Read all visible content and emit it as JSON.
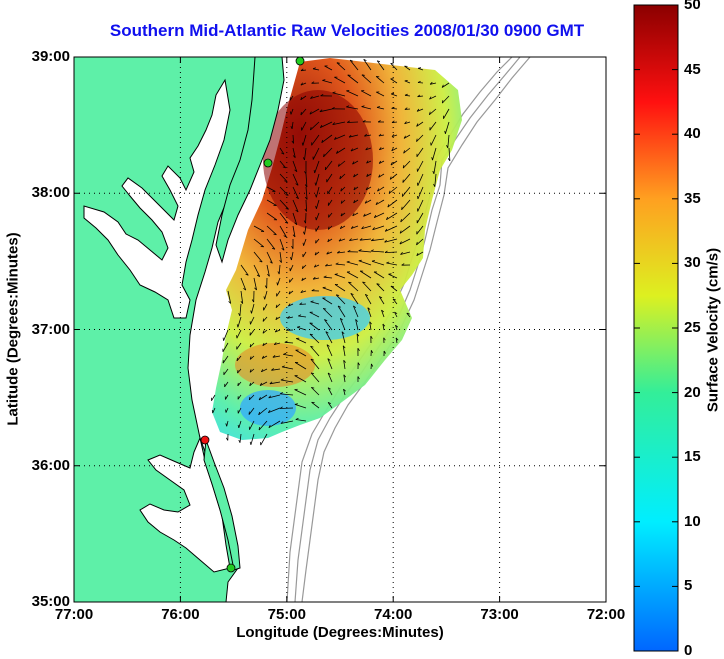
{
  "title": "Southern Mid-Atlantic Raw Velocities 2008/01/30 0900 GMT",
  "map": {
    "xlabel": "Longitude (Degrees:Minutes)",
    "ylabel": "Latitude (Degrees:Minutes)",
    "x_ticks": [
      "77:00",
      "76:00",
      "75:00",
      "74:00",
      "73:00",
      "72:00"
    ],
    "y_ticks": [
      "39:00",
      "38:00",
      "37:00",
      "36:00",
      "35:00"
    ],
    "lon_range": [
      -77,
      -72
    ],
    "lat_range": [
      35,
      39
    ]
  },
  "colorbar": {
    "label": "Surface Velocity (cm/s)",
    "ticks": [
      "50",
      "45",
      "40",
      "35",
      "30",
      "25",
      "20",
      "15",
      "10",
      "5",
      "0"
    ],
    "range": [
      0,
      50
    ]
  },
  "colors": {
    "land": "#5ef0a8",
    "coast": "#000000",
    "bathymetry": "#999999",
    "title": "#1010ee",
    "station_green": "#22cc22",
    "station_red": "#ee1111"
  }
}
